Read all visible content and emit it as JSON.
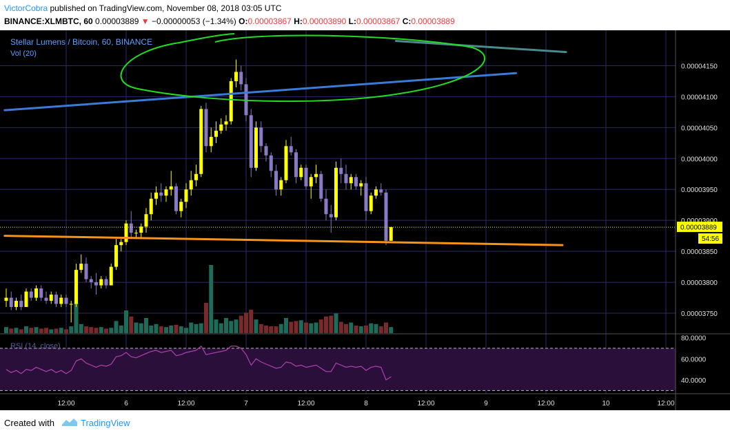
{
  "header": {
    "author": "VictorCobra",
    "published_text": "published on TradingView.com, November 08, 2018 03:05 UTC",
    "symbol": "BINANCE:XLMBTC, 60",
    "last": "0.00003889",
    "change": "−0.00000053 (−1.34%)",
    "o_label": "O:",
    "o_value": "0.00003867",
    "h_label": "H:",
    "h_value": "0.00003890",
    "l_label": "L:",
    "l_value": "0.00003867",
    "c_label": "C:",
    "c_value": "0.00003889"
  },
  "footer": {
    "created_with": "Created with",
    "brand": "TradingView"
  },
  "chart_data": {
    "type": "candlestick",
    "title": "Stellar Lumens / Bitcoin, 60, BINANCE",
    "volume_label": "Vol (20)",
    "rsi_label": "RSI (14, close)",
    "ylim": [
      3.72e-05,
      4.205e-05
    ],
    "y_ticks": [
      "0.00004150",
      "0.00004100",
      "0.00004050",
      "0.00004000",
      "0.00003950",
      "0.00003900",
      "0.00003850",
      "0.00003800",
      "0.00003750"
    ],
    "y_tick_values": [
      4.15e-05,
      4.1e-05,
      4.05e-05,
      4e-05,
      3.95e-05,
      3.9e-05,
      3.85e-05,
      3.8e-05,
      3.75e-05
    ],
    "last_price_label": "0.00003889",
    "last_price": 3.889e-05,
    "countdown_label": "54:56",
    "rsi_ticks": [
      "80.0000",
      "60.0000",
      "40.0000"
    ],
    "rsi_tick_values": [
      80,
      60,
      40
    ],
    "rsi_levels": [
      70,
      30
    ],
    "x_ticks": [
      {
        "label": "12:00",
        "bar": 12
      },
      {
        "label": "6",
        "bar": 24
      },
      {
        "label": "12:00",
        "bar": 36
      },
      {
        "label": "7",
        "bar": 48
      },
      {
        "label": "12:00",
        "bar": 60
      },
      {
        "label": "8",
        "bar": 72
      },
      {
        "label": "12:00",
        "bar": 84
      },
      {
        "label": "9",
        "bar": 96
      },
      {
        "label": "12:00",
        "bar": 108
      },
      {
        "label": "10",
        "bar": 120
      },
      {
        "label": "12:00",
        "bar": 132
      }
    ],
    "first_bar_date": "2018-11-05 12:00",
    "candles": [
      [
        3.77e-05,
        3.79e-05,
        3.76e-05,
        3.775e-05
      ],
      [
        3.775e-05,
        3.785e-05,
        3.755e-05,
        3.76e-05
      ],
      [
        3.76e-05,
        3.775e-05,
        3.755e-05,
        3.77e-05
      ],
      [
        3.77e-05,
        3.78e-05,
        3.755e-05,
        3.76e-05
      ],
      [
        3.76e-05,
        3.79e-05,
        3.76e-05,
        3.785e-05
      ],
      [
        3.785e-05,
        3.79e-05,
        3.77e-05,
        3.775e-05
      ],
      [
        3.775e-05,
        3.795e-05,
        3.77e-05,
        3.79e-05
      ],
      [
        3.79e-05,
        3.795e-05,
        3.77e-05,
        3.775e-05
      ],
      [
        3.775e-05,
        3.785e-05,
        3.765e-05,
        3.77e-05
      ],
      [
        3.77e-05,
        3.785e-05,
        3.765e-05,
        3.78e-05
      ],
      [
        3.78e-05,
        3.785e-05,
        3.76e-05,
        3.765e-05
      ],
      [
        3.765e-05,
        3.78e-05,
        3.76e-05,
        3.775e-05
      ],
      [
        3.775e-05,
        3.78e-05,
        3.76e-05,
        3.765e-05
      ],
      [
        3.765e-05,
        3.77e-05,
        3.735e-05,
        3.765e-05
      ],
      [
        3.765e-05,
        3.83e-05,
        3.76e-05,
        3.82e-05
      ],
      [
        3.82e-05,
        3.845e-05,
        3.815e-05,
        3.83e-05
      ],
      [
        3.83e-05,
        3.84e-05,
        3.8e-05,
        3.805e-05
      ],
      [
        3.805e-05,
        3.81e-05,
        3.79e-05,
        3.8e-05
      ],
      [
        3.8e-05,
        3.815e-05,
        3.78e-05,
        3.795e-05
      ],
      [
        3.795e-05,
        3.81e-05,
        3.79e-05,
        3.805e-05
      ],
      [
        3.805e-05,
        3.81e-05,
        3.79e-05,
        3.795e-05
      ],
      [
        3.795e-05,
        3.83e-05,
        3.795e-05,
        3.825e-05
      ],
      [
        3.825e-05,
        3.87e-05,
        3.82e-05,
        3.86e-05
      ],
      [
        3.86e-05,
        3.87e-05,
        3.85e-05,
        3.865e-05
      ],
      [
        3.865e-05,
        3.9e-05,
        3.86e-05,
        3.895e-05
      ],
      [
        3.895e-05,
        3.915e-05,
        3.87e-05,
        3.88e-05
      ],
      [
        3.88e-05,
        3.885e-05,
        3.87e-05,
        3.88e-05
      ],
      [
        3.88e-05,
        3.895e-05,
        3.87e-05,
        3.89e-05
      ],
      [
        3.89e-05,
        3.92e-05,
        3.88e-05,
        3.91e-05
      ],
      [
        3.91e-05,
        3.945e-05,
        3.9e-05,
        3.935e-05
      ],
      [
        3.935e-05,
        3.955e-05,
        3.925e-05,
        3.945e-05
      ],
      [
        3.945e-05,
        3.96e-05,
        3.93e-05,
        3.94e-05
      ],
      [
        3.94e-05,
        3.955e-05,
        3.93e-05,
        3.95e-05
      ],
      [
        3.95e-05,
        3.98e-05,
        3.94e-05,
        3.955e-05
      ],
      [
        3.955e-05,
        3.96e-05,
        3.91e-05,
        3.915e-05
      ],
      [
        3.915e-05,
        3.935e-05,
        3.905e-05,
        3.93e-05
      ],
      [
        3.93e-05,
        3.96e-05,
        3.92e-05,
        3.95e-05
      ],
      [
        3.95e-05,
        3.98e-05,
        3.94e-05,
        3.965e-05
      ],
      [
        3.965e-05,
        3.99e-05,
        3.955e-05,
        3.975e-05
      ],
      [
        3.975e-05,
        4.085e-05,
        3.97e-05,
        4.08e-05
      ],
      [
        4.08e-05,
        4.09e-05,
        4.01e-05,
        4.02e-05
      ],
      [
        4.02e-05,
        4.05e-05,
        4.01e-05,
        4.035e-05
      ],
      [
        4.035e-05,
        4.06e-05,
        4.025e-05,
        4.045e-05
      ],
      [
        4.045e-05,
        4.065e-05,
        4.04e-05,
        4.055e-05
      ],
      [
        4.055e-05,
        4.07e-05,
        4.045e-05,
        4.06e-05
      ],
      [
        4.06e-05,
        4.13e-05,
        4.055e-05,
        4.125e-05
      ],
      [
        4.125e-05,
        4.16e-05,
        4.115e-05,
        4.14e-05
      ],
      [
        4.14e-05,
        4.15e-05,
        4.11e-05,
        4.12e-05
      ],
      [
        4.12e-05,
        4.13e-05,
        4.06e-05,
        4.07e-05
      ],
      [
        4.07e-05,
        4.08e-05,
        3.97e-05,
        3.985e-05
      ],
      [
        3.985e-05,
        4.06e-05,
        3.98e-05,
        4.05e-05
      ],
      [
        4.05e-05,
        4.06e-05,
        4.01e-05,
        4.02e-05
      ],
      [
        4.02e-05,
        4.025e-05,
        3.995e-05,
        4.005e-05
      ],
      [
        4.005e-05,
        4.01e-05,
        3.97e-05,
        3.98e-05
      ],
      [
        3.98e-05,
        3.99e-05,
        3.94e-05,
        3.95e-05
      ],
      [
        3.95e-05,
        3.97e-05,
        3.94e-05,
        3.965e-05
      ],
      [
        3.965e-05,
        4.03e-05,
        3.96e-05,
        4.02e-05
      ],
      [
        4.02e-05,
        4.035e-05,
        4.005e-05,
        4.01e-05
      ],
      [
        4.01e-05,
        4.015e-05,
        3.96e-05,
        3.97e-05
      ],
      [
        3.97e-05,
        3.99e-05,
        3.965e-05,
        3.985e-05
      ],
      [
        3.985e-05,
        3.99e-05,
        3.95e-05,
        3.955e-05
      ],
      [
        3.955e-05,
        3.975e-05,
        3.935e-05,
        3.97e-05
      ],
      [
        3.97e-05,
        3.99e-05,
        3.96e-05,
        3.975e-05
      ],
      [
        3.975e-05,
        3.98e-05,
        3.93e-05,
        3.935e-05
      ],
      [
        3.935e-05,
        3.95e-05,
        3.9e-05,
        3.91e-05
      ],
      [
        3.91e-05,
        3.925e-05,
        3.88e-05,
        3.905e-05
      ],
      [
        3.905e-05,
        3.995e-05,
        3.9e-05,
        3.985e-05
      ],
      [
        3.985e-05,
        4e-05,
        3.96e-05,
        3.975e-05
      ],
      [
        3.975e-05,
        3.99e-05,
        3.95e-05,
        3.96e-05
      ],
      [
        3.96e-05,
        3.975e-05,
        3.95e-05,
        3.97e-05
      ],
      [
        3.97e-05,
        3.975e-05,
        3.95e-05,
        3.955e-05
      ],
      [
        3.955e-05,
        3.965e-05,
        3.94e-05,
        3.96e-05
      ],
      [
        3.96e-05,
        3.97e-05,
        3.9e-05,
        3.915e-05
      ],
      [
        3.915e-05,
        3.945e-05,
        3.91e-05,
        3.94e-05
      ],
      [
        3.94e-05,
        3.955e-05,
        3.935e-05,
        3.95e-05
      ],
      [
        3.95e-05,
        3.96e-05,
        3.94e-05,
        3.945e-05
      ],
      [
        3.945e-05,
        3.95e-05,
        3.86e-05,
        3.867e-05
      ],
      [
        3.867e-05,
        3.89e-05,
        3.867e-05,
        3.889e-05
      ]
    ],
    "volumes": [
      8,
      6,
      7,
      5,
      9,
      7,
      8,
      6,
      7,
      5,
      6,
      7,
      5,
      9,
      40,
      12,
      9,
      8,
      7,
      8,
      6,
      7,
      16,
      10,
      30,
      22,
      14,
      13,
      20,
      10,
      12,
      9,
      8,
      10,
      11,
      9,
      7,
      14,
      12,
      13,
      40,
      90,
      18,
      13,
      20,
      16,
      18,
      23,
      27,
      31,
      18,
      12,
      10,
      9,
      9,
      12,
      20,
      15,
      16,
      17,
      14,
      13,
      14,
      18,
      22,
      23,
      26,
      15,
      12,
      14,
      10,
      9,
      10,
      13,
      12,
      9,
      14,
      8
    ],
    "volume_scale_max": 100,
    "rsi": [
      50,
      47,
      49,
      46,
      50,
      49,
      52,
      50,
      48,
      50,
      47,
      49,
      46,
      49,
      58,
      60,
      56,
      54,
      52,
      54,
      53,
      55,
      62,
      63,
      66,
      62,
      61,
      63,
      65,
      67,
      68,
      66,
      67,
      68,
      63,
      64,
      66,
      67,
      68,
      72,
      64,
      65,
      66,
      67,
      68,
      72,
      72,
      70,
      64,
      54,
      60,
      57,
      55,
      53,
      51,
      52,
      57,
      56,
      53,
      54,
      52,
      53,
      54,
      51,
      48,
      48,
      56,
      54,
      52,
      53,
      52,
      53,
      49,
      52,
      53,
      52,
      40,
      43
    ],
    "rsi_ylim": [
      27,
      83
    ],
    "drawings": [
      {
        "name": "blue-resistance-line",
        "color": "#3b7bd8",
        "points": [
          [
            -0.3,
            4.078e-05
          ],
          [
            102,
            4.138e-05
          ]
        ]
      },
      {
        "name": "teal-trend-line",
        "color": "#4a8a8c",
        "points": [
          [
            78,
            4.19e-05
          ],
          [
            112,
            4.172e-05
          ]
        ]
      },
      {
        "name": "orange-support-line",
        "color": "#f7931a",
        "points": [
          [
            -0.3,
            3.875e-05
          ],
          [
            111.3,
            3.86e-05
          ]
        ]
      }
    ],
    "annotation_ellipse": {
      "color": "#22dd22"
    },
    "colors": {
      "background": "#000000",
      "grid": "#2a2a6a",
      "up": "#ffff00",
      "down": "#8a79c4",
      "vol_up": "#1f6b5a",
      "vol_down": "#7a2a2a",
      "rsi": "#b040b0",
      "rsi_band": "#2a0f3a",
      "title": "#5aa0ff",
      "label": "#e0e0e0",
      "price_tag": "#ffff00"
    }
  }
}
